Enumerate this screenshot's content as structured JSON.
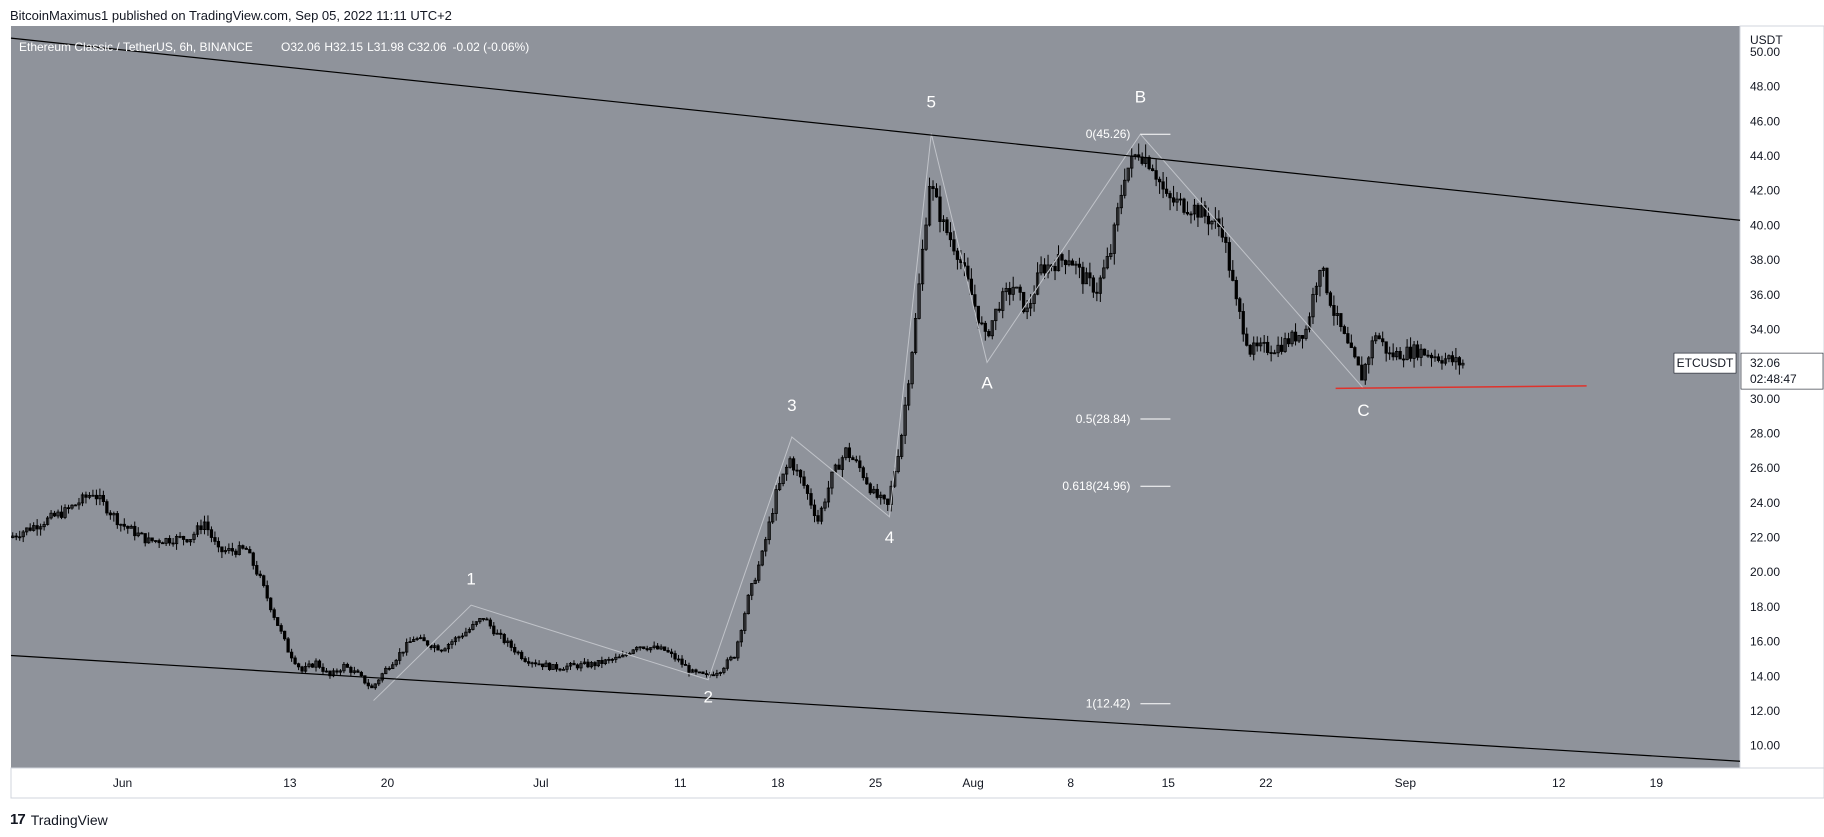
{
  "header": {
    "published": "BitcoinMaximus1 published on TradingView.com, Sep 05, 2022 11:11 UTC+2"
  },
  "footer": {
    "logo_glyph": "17",
    "brand": "TradingView"
  },
  "colors": {
    "background": "#8f939b",
    "candle": "#000000",
    "wave_line": "#c0c3c9",
    "support_line": "#e0322b",
    "text_light": "#ffffff",
    "axis_bg": "#ffffff",
    "axis_text": "#131722"
  },
  "chart_data": {
    "type": "candlestick",
    "symbol_info": "Ethereum Classic / TetherUS, 6h, BINANCE",
    "ohlc": [
      {
        "k": "O",
        "v": "32.06"
      },
      {
        "k": "H",
        "v": "32.15"
      },
      {
        "k": "L",
        "v": "31.98"
      },
      {
        "k": "C",
        "v": "32.06"
      }
    ],
    "change": "-0.02 (-0.06%)",
    "y_axis": {
      "label": "USDT",
      "ticks": [
        "10.00",
        "12.00",
        "14.00",
        "16.00",
        "18.00",
        "20.00",
        "22.00",
        "24.00",
        "26.00",
        "28.00",
        "30.00",
        "32.00",
        "34.00",
        "36.00",
        "38.00",
        "40.00",
        "42.00",
        "44.00",
        "46.00",
        "48.00",
        "50.00"
      ],
      "range": [
        9.0,
        51.5
      ]
    },
    "x_axis": {
      "ticks": [
        {
          "label": "Jun",
          "date": "2022-06-01"
        },
        {
          "label": "13",
          "date": "2022-06-13"
        },
        {
          "label": "20",
          "date": "2022-06-20"
        },
        {
          "label": "Jul",
          "date": "2022-07-01"
        },
        {
          "label": "11",
          "date": "2022-07-11"
        },
        {
          "label": "18",
          "date": "2022-07-18"
        },
        {
          "label": "25",
          "date": "2022-07-25"
        },
        {
          "label": "Aug",
          "date": "2022-08-01"
        },
        {
          "label": "8",
          "date": "2022-08-08"
        },
        {
          "label": "15",
          "date": "2022-08-15"
        },
        {
          "label": "22",
          "date": "2022-08-22"
        },
        {
          "label": "Sep",
          "date": "2022-09-01"
        },
        {
          "label": "12",
          "date": "2022-09-12"
        },
        {
          "label": "19",
          "date": "2022-09-19"
        }
      ],
      "range": [
        "2022-05-24",
        "2022-09-25"
      ]
    },
    "price_tag": {
      "symbol": "ETCUSDT",
      "price": "32.06",
      "countdown": "02:48:47"
    },
    "channel_lines": [
      {
        "name": "upper",
        "points": [
          {
            "date": "2022-05-24",
            "price": 50.8
          },
          {
            "date": "2022-09-25",
            "price": 40.3
          }
        ]
      },
      {
        "name": "lower",
        "points": [
          {
            "date": "2022-05-24",
            "price": 15.2
          },
          {
            "date": "2022-09-25",
            "price": 9.1
          }
        ]
      }
    ],
    "support_line": {
      "points": [
        {
          "date": "2022-08-27",
          "price": 30.6
        },
        {
          "date": "2022-09-14",
          "price": 30.75
        }
      ]
    },
    "fib_levels": [
      {
        "label": "0(45.26)",
        "price": 45.26
      },
      {
        "label": "0.5(28.84)",
        "price": 28.84
      },
      {
        "label": "0.618(24.96)",
        "price": 24.96
      },
      {
        "label": "1(12.42)",
        "price": 12.42
      }
    ],
    "wave_labels": [
      {
        "label": "1",
        "date": "2022-06-26",
        "price": 19.3
      },
      {
        "label": "2",
        "date": "2022-07-13",
        "price": 12.5
      },
      {
        "label": "3",
        "date": "2022-07-19",
        "price": 29.3
      },
      {
        "label": "4",
        "date": "2022-07-26",
        "price": 21.7
      },
      {
        "label": "5",
        "date": "2022-07-29",
        "price": 46.8
      },
      {
        "label": "A",
        "date": "2022-08-02",
        "price": 30.6
      },
      {
        "label": "B",
        "date": "2022-08-13",
        "price": 47.1
      },
      {
        "label": "C",
        "date": "2022-08-29",
        "price": 29.0
      }
    ],
    "wave_path": [
      {
        "date": "2022-06-19",
        "price": 12.6
      },
      {
        "date": "2022-06-26",
        "price": 18.1
      },
      {
        "date": "2022-07-13",
        "price": 13.8
      },
      {
        "date": "2022-07-19",
        "price": 27.8
      },
      {
        "date": "2022-07-26",
        "price": 23.2
      },
      {
        "date": "2022-07-29",
        "price": 45.3
      },
      {
        "date": "2022-08-02",
        "price": 32.1
      },
      {
        "date": "2022-08-13",
        "price": 45.26
      },
      {
        "date": "2022-08-29",
        "price": 30.6
      }
    ],
    "price_path": [
      {
        "date": "2022-05-24",
        "price": 22.0
      },
      {
        "date": "2022-05-28",
        "price": 23.5
      },
      {
        "date": "2022-05-30",
        "price": 24.6
      },
      {
        "date": "2022-06-01",
        "price": 22.8
      },
      {
        "date": "2022-06-03",
        "price": 21.8
      },
      {
        "date": "2022-06-06",
        "price": 22.0
      },
      {
        "date": "2022-06-07",
        "price": 22.9
      },
      {
        "date": "2022-06-08",
        "price": 21.2
      },
      {
        "date": "2022-06-10",
        "price": 21.3
      },
      {
        "date": "2022-06-11",
        "price": 19.6
      },
      {
        "date": "2022-06-12",
        "price": 17.5
      },
      {
        "date": "2022-06-13",
        "price": 15.5
      },
      {
        "date": "2022-06-14",
        "price": 14.3
      },
      {
        "date": "2022-06-15",
        "price": 14.8
      },
      {
        "date": "2022-06-16",
        "price": 14.0
      },
      {
        "date": "2022-06-17",
        "price": 14.6
      },
      {
        "date": "2022-06-18",
        "price": 14.1
      },
      {
        "date": "2022-06-19",
        "price": 13.3
      },
      {
        "date": "2022-06-20",
        "price": 14.4
      },
      {
        "date": "2022-06-22",
        "price": 16.2
      },
      {
        "date": "2022-06-24",
        "price": 15.6
      },
      {
        "date": "2022-06-26",
        "price": 16.7
      },
      {
        "date": "2022-06-27",
        "price": 17.4
      },
      {
        "date": "2022-06-28",
        "price": 16.4
      },
      {
        "date": "2022-06-30",
        "price": 15.0
      },
      {
        "date": "2022-07-02",
        "price": 14.5
      },
      {
        "date": "2022-07-05",
        "price": 14.7
      },
      {
        "date": "2022-07-07",
        "price": 15.1
      },
      {
        "date": "2022-07-08",
        "price": 15.8
      },
      {
        "date": "2022-07-10",
        "price": 15.5
      },
      {
        "date": "2022-07-11",
        "price": 14.9
      },
      {
        "date": "2022-07-12",
        "price": 14.2
      },
      {
        "date": "2022-07-13",
        "price": 14.0
      },
      {
        "date": "2022-07-14",
        "price": 14.4
      },
      {
        "date": "2022-07-15",
        "price": 15.2
      },
      {
        "date": "2022-07-16",
        "price": 18.5
      },
      {
        "date": "2022-07-17",
        "price": 21.0
      },
      {
        "date": "2022-07-18",
        "price": 24.5
      },
      {
        "date": "2022-07-19",
        "price": 26.5
      },
      {
        "date": "2022-07-20",
        "price": 25.0
      },
      {
        "date": "2022-07-21",
        "price": 23.0
      },
      {
        "date": "2022-07-22",
        "price": 25.5
      },
      {
        "date": "2022-07-23",
        "price": 27.0
      },
      {
        "date": "2022-07-24",
        "price": 26.0
      },
      {
        "date": "2022-07-25",
        "price": 24.5
      },
      {
        "date": "2022-07-26",
        "price": 23.8
      },
      {
        "date": "2022-07-27",
        "price": 28.0
      },
      {
        "date": "2022-07-28",
        "price": 34.5
      },
      {
        "date": "2022-07-29",
        "price": 42.5
      },
      {
        "date": "2022-07-30",
        "price": 40.0
      },
      {
        "date": "2022-07-31",
        "price": 38.5
      },
      {
        "date": "2022-08-01",
        "price": 36.0
      },
      {
        "date": "2022-08-02",
        "price": 33.5
      },
      {
        "date": "2022-08-03",
        "price": 35.5
      },
      {
        "date": "2022-08-04",
        "price": 36.5
      },
      {
        "date": "2022-08-05",
        "price": 35.0
      },
      {
        "date": "2022-08-06",
        "price": 37.5
      },
      {
        "date": "2022-08-08",
        "price": 38.2
      },
      {
        "date": "2022-08-09",
        "price": 37.0
      },
      {
        "date": "2022-08-10",
        "price": 36.3
      },
      {
        "date": "2022-08-11",
        "price": 38.5
      },
      {
        "date": "2022-08-12",
        "price": 43.0
      },
      {
        "date": "2022-08-13",
        "price": 44.3
      },
      {
        "date": "2022-08-14",
        "price": 43.5
      },
      {
        "date": "2022-08-15",
        "price": 41.5
      },
      {
        "date": "2022-08-17",
        "price": 41.0
      },
      {
        "date": "2022-08-19",
        "price": 39.8
      },
      {
        "date": "2022-08-20",
        "price": 35.5
      },
      {
        "date": "2022-08-21",
        "price": 32.8
      },
      {
        "date": "2022-08-23",
        "price": 33.0
      },
      {
        "date": "2022-08-25",
        "price": 34.0
      },
      {
        "date": "2022-08-26",
        "price": 37.8
      },
      {
        "date": "2022-08-27",
        "price": 35.0
      },
      {
        "date": "2022-08-28",
        "price": 33.0
      },
      {
        "date": "2022-08-29",
        "price": 31.3
      },
      {
        "date": "2022-08-30",
        "price": 33.8
      },
      {
        "date": "2022-08-31",
        "price": 32.5
      },
      {
        "date": "2022-09-02",
        "price": 32.8
      },
      {
        "date": "2022-09-05",
        "price": 32.06
      }
    ]
  }
}
